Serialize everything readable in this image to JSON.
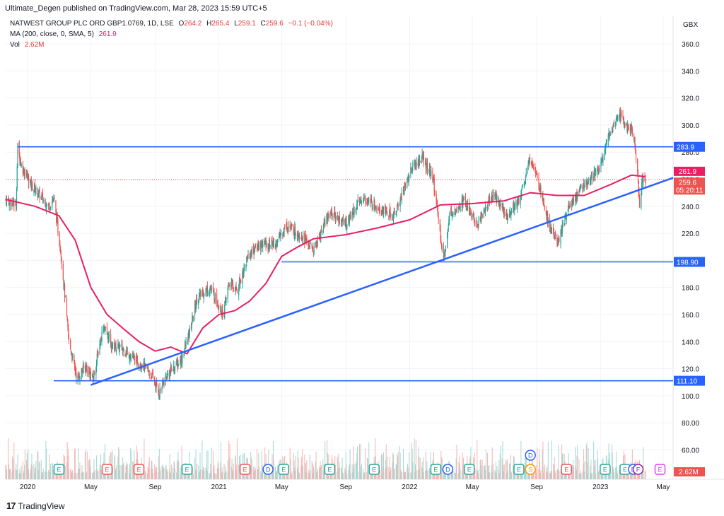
{
  "publisher_line": "Ultimate_Degen published on TradingView.com, Mar 28, 2023 15:59 UTC+5",
  "legend": {
    "symbol": "NATWEST GROUP PLC ORD GBP1.0769, 1D, LSE",
    "o_label": "O",
    "o_value": "264.2",
    "h_label": "H",
    "h_value": "265.4",
    "l_label": "L",
    "l_value": "259.1",
    "c_label": "C",
    "c_value": "259.6",
    "change": "−0.1 (−0.04%)",
    "ma_label": "MA (200, close, 0, SMA, 5)",
    "ma_value": "261.9",
    "vol_label": "Vol",
    "vol_value": "2.62M"
  },
  "footer": {
    "logo": "17",
    "brand": "TradingView"
  },
  "colors": {
    "up": "#26a69a",
    "down": "#ef5350",
    "ma": "#e91e63",
    "trend": "#2962ff",
    "vol_up": "#a3d9d3",
    "vol_down": "#f7b4b2",
    "grid": "#f0f3fa"
  },
  "chart_data": {
    "type": "candlestick",
    "currency": "GBX",
    "y_ticks": [
      "360.0",
      "340.0",
      "320.0",
      "300.0",
      "280.0",
      "260.0",
      "240.0",
      "220.0",
      "200.0",
      "180.0",
      "160.0",
      "140.0",
      "120.0",
      "100.0",
      "80.00",
      "60.00"
    ],
    "y_tick_values": [
      360,
      340,
      320,
      300,
      280,
      260,
      240,
      220,
      200,
      180,
      160,
      140,
      120,
      100,
      80,
      60
    ],
    "x_ticks": [
      "2020",
      "May",
      "Sep",
      "2021",
      "May",
      "Sep",
      "2022",
      "May",
      "Sep",
      "2023",
      "May"
    ],
    "x_tick_dates": [
      "2020-01-01",
      "2020-05-01",
      "2020-09-01",
      "2021-01-01",
      "2021-05-01",
      "2021-09-01",
      "2022-01-01",
      "2022-05-01",
      "2022-09-01",
      "2023-01-01",
      "2023-05-01"
    ],
    "date_range": [
      "2019-11-20",
      "2023-05-20"
    ],
    "price_path": [
      [
        "2019-11-20",
        245
      ],
      [
        "2019-12-10",
        241
      ],
      [
        "2019-12-13",
        284
      ],
      [
        "2019-12-20",
        270
      ],
      [
        "2020-01-10",
        255
      ],
      [
        "2020-02-10",
        240
      ],
      [
        "2020-02-20",
        246
      ],
      [
        "2020-03-05",
        205
      ],
      [
        "2020-03-20",
        140
      ],
      [
        "2020-04-05",
        112
      ],
      [
        "2020-04-20",
        122
      ],
      [
        "2020-05-05",
        112
      ],
      [
        "2020-05-25",
        152
      ],
      [
        "2020-06-10",
        137
      ],
      [
        "2020-07-01",
        135
      ],
      [
        "2020-07-20",
        128
      ],
      [
        "2020-08-10",
        122
      ],
      [
        "2020-08-25",
        115
      ],
      [
        "2020-09-08",
        102
      ],
      [
        "2020-09-25",
        116
      ],
      [
        "2020-10-20",
        126
      ],
      [
        "2020-11-05",
        145
      ],
      [
        "2020-11-20",
        172
      ],
      [
        "2020-12-15",
        180
      ],
      [
        "2021-01-10",
        160
      ],
      [
        "2021-01-20",
        183
      ],
      [
        "2021-02-05",
        178
      ],
      [
        "2021-02-25",
        203
      ],
      [
        "2021-03-20",
        212
      ],
      [
        "2021-04-20",
        212
      ],
      [
        "2021-05-10",
        226
      ],
      [
        "2021-06-10",
        218
      ],
      [
        "2021-07-01",
        207
      ],
      [
        "2021-08-01",
        236
      ],
      [
        "2021-09-01",
        227
      ],
      [
        "2021-10-01",
        246
      ],
      [
        "2021-11-01",
        240
      ],
      [
        "2021-12-01",
        232
      ],
      [
        "2022-01-05",
        268
      ],
      [
        "2022-01-25",
        276
      ],
      [
        "2022-02-15",
        260
      ],
      [
        "2022-03-07",
        200
      ],
      [
        "2022-03-20",
        236
      ],
      [
        "2022-04-15",
        244
      ],
      [
        "2022-05-10",
        226
      ],
      [
        "2022-06-10",
        250
      ],
      [
        "2022-07-05",
        233
      ],
      [
        "2022-07-30",
        245
      ],
      [
        "2022-08-20",
        276
      ],
      [
        "2022-09-01",
        265
      ],
      [
        "2022-09-15",
        240
      ],
      [
        "2022-09-28",
        222
      ],
      [
        "2022-10-12",
        213
      ],
      [
        "2022-11-01",
        240
      ],
      [
        "2022-12-01",
        256
      ],
      [
        "2023-01-01",
        270
      ],
      [
        "2023-01-20",
        296
      ],
      [
        "2023-02-05",
        310
      ],
      [
        "2023-02-20",
        298
      ],
      [
        "2023-03-05",
        295
      ],
      [
        "2023-03-12",
        270
      ],
      [
        "2023-03-17",
        238
      ],
      [
        "2023-03-22",
        260
      ],
      [
        "2023-03-28",
        259.6
      ]
    ],
    "ma200_path": [
      [
        "2019-11-20",
        245
      ],
      [
        "2020-01-15",
        240
      ],
      [
        "2020-03-01",
        233
      ],
      [
        "2020-04-01",
        215
      ],
      [
        "2020-05-01",
        180
      ],
      [
        "2020-06-01",
        160
      ],
      [
        "2020-07-01",
        150
      ],
      [
        "2020-08-01",
        140
      ],
      [
        "2020-09-01",
        133
      ],
      [
        "2020-10-01",
        136
      ],
      [
        "2020-11-01",
        131
      ],
      [
        "2020-12-01",
        150
      ],
      [
        "2021-01-01",
        160
      ],
      [
        "2021-02-01",
        163
      ],
      [
        "2021-03-01",
        170
      ],
      [
        "2021-04-01",
        183
      ],
      [
        "2021-05-01",
        203
      ],
      [
        "2021-06-01",
        210
      ],
      [
        "2021-07-01",
        216
      ],
      [
        "2021-09-01",
        219
      ],
      [
        "2021-11-01",
        224
      ],
      [
        "2022-01-01",
        230
      ],
      [
        "2022-03-01",
        241
      ],
      [
        "2022-05-01",
        242
      ],
      [
        "2022-07-01",
        244
      ],
      [
        "2022-08-20",
        250
      ],
      [
        "2022-10-10",
        248
      ],
      [
        "2022-12-01",
        248
      ],
      [
        "2023-01-20",
        256
      ],
      [
        "2023-03-01",
        263
      ],
      [
        "2023-03-28",
        261.9
      ]
    ],
    "horizontal_levels": [
      {
        "value": 283.9,
        "label": "283.9",
        "start": "2019-12-13"
      },
      {
        "value": 198.9,
        "label": "198.90",
        "start": "2021-05-01"
      },
      {
        "value": 111.1,
        "label": "111.10",
        "start": "2020-02-20"
      }
    ],
    "trend_line": {
      "start": [
        "2020-05-01",
        108
      ],
      "end": [
        "2023-05-20",
        261
      ]
    },
    "price_labels": {
      "ma_badge": "261.9",
      "last_price": "259.6",
      "countdown": "05:20:11",
      "vol_badge": "2.62M"
    },
    "markers": [
      {
        "date": "2020-03-01",
        "type": "E",
        "color": "#26a69a"
      },
      {
        "date": "2020-06-01",
        "type": "E",
        "color": "#ef5350"
      },
      {
        "date": "2020-08-01",
        "type": "E",
        "color": "#ef5350"
      },
      {
        "date": "2020-11-01",
        "type": "E",
        "color": "#26a69a"
      },
      {
        "date": "2021-02-20",
        "type": "E",
        "color": "#ef5350"
      },
      {
        "date": "2021-04-05",
        "type": "D",
        "color": "#2962ff"
      },
      {
        "date": "2021-05-05",
        "type": "E",
        "color": "#26a69a"
      },
      {
        "date": "2021-08-01",
        "type": "E",
        "color": "#26a69a"
      },
      {
        "date": "2021-10-25",
        "type": "E",
        "color": "#26a69a"
      },
      {
        "date": "2022-02-20",
        "type": "E",
        "color": "#26a69a"
      },
      {
        "date": "2022-03-15",
        "type": "D",
        "color": "#2962ff"
      },
      {
        "date": "2022-04-25",
        "type": "E",
        "color": "#26a69a"
      },
      {
        "date": "2022-07-29",
        "type": "E",
        "color": "#26a69a"
      },
      {
        "date": "2022-08-20",
        "type": "S",
        "color": "#ff9800"
      },
      {
        "date": "2022-08-20",
        "type": "D",
        "color": "#2962ff"
      },
      {
        "date": "2022-10-28",
        "type": "E",
        "color": "#ef5350"
      },
      {
        "date": "2023-01-10",
        "type": "E",
        "color": "#26a69a"
      },
      {
        "date": "2023-02-17",
        "type": "E",
        "color": "#26a69a"
      },
      {
        "date": "2023-03-05",
        "type": "D",
        "color": "#2962ff"
      },
      {
        "date": "2023-03-14",
        "type": "F",
        "color": "#8e24aa"
      },
      {
        "date": "2023-04-25",
        "type": "E",
        "color": "#e040fb"
      }
    ]
  }
}
